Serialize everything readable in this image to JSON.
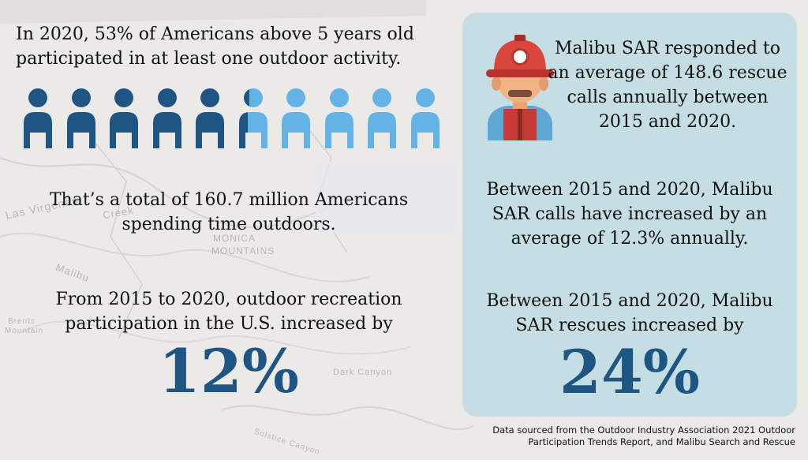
{
  "left": {
    "participation": "In 2020, 53% of Americans above 5 years old participated in at least one outdoor activity.",
    "total": "That’s a total of 160.7 million Americans spending time outdoors.",
    "growth_text": "From 2015 to 2020, outdoor recreation participation in the U.S. increased by",
    "growth_value": "12%"
  },
  "people_chart": {
    "total_icons": 10,
    "filled_fraction": 0.53,
    "filled_color": "#1f5582",
    "empty_color": "#64b3e6"
  },
  "card": {
    "avg_calls": "Malibu SAR responded to an average of 148.6 rescue calls annually between 2015 and 2020.",
    "calls_increase": "Between 2015 and 2020, Malibu SAR calls have increased by an average of 12.3% annually.",
    "rescues_text": "Between 2015 and 2020, Malibu SAR rescues increased by",
    "rescues_value": "24%",
    "background_color": "#c4dee3",
    "icon": "rescuer-helmet-icon"
  },
  "map_labels": [
    "Las Virgenes",
    "Creek",
    "MONICA",
    "MOUNTAINS",
    "Malibu",
    "Brents",
    "Mountain",
    "Dark Canyon",
    "Solstice Canyon"
  ],
  "footer": {
    "source": "Data sourced from the Outdoor Industry Association 2021 Outdoor Participation Trends Report, and Malibu Search and Rescue"
  },
  "accent_color": "#1f5582"
}
